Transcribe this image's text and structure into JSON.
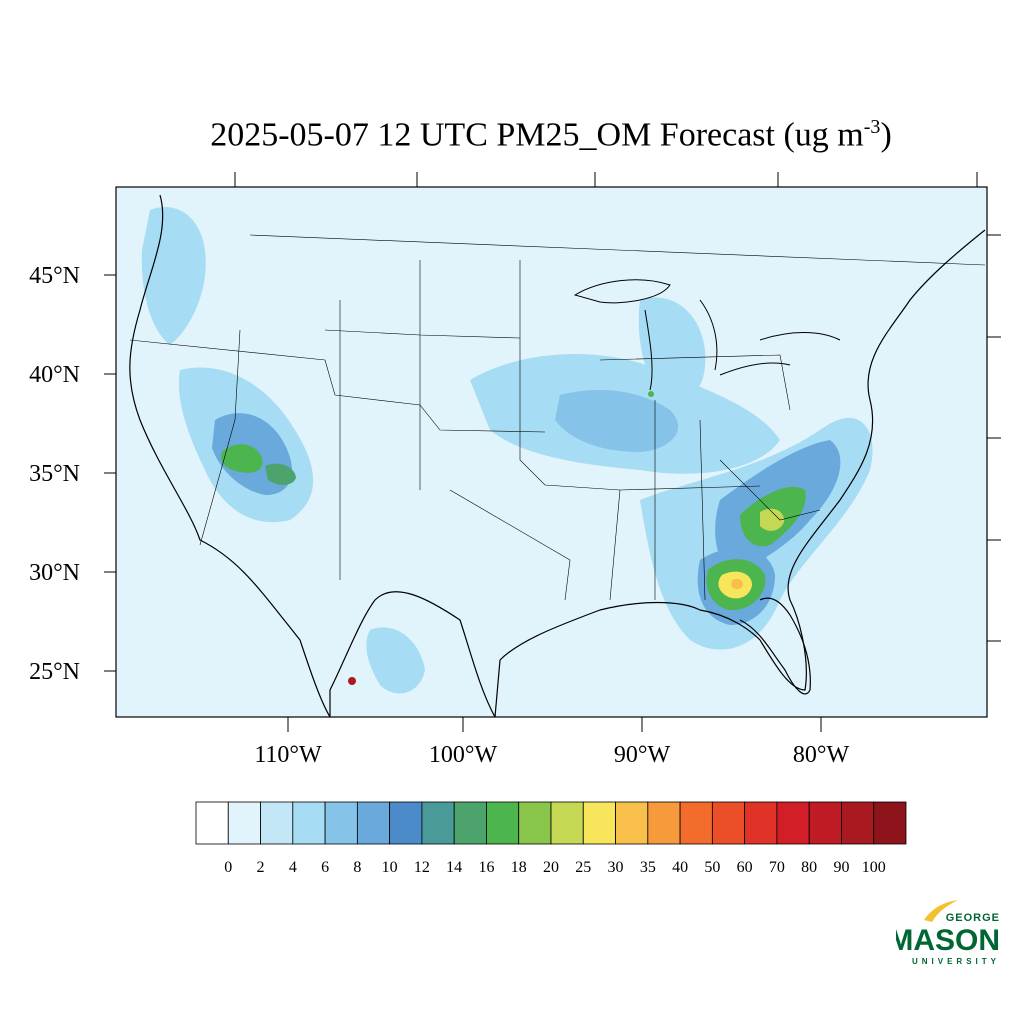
{
  "title": {
    "main": "2025-05-07 12 UTC PM25_OM Forecast (ug m",
    "exponent": "-3",
    "close": ")"
  },
  "axes": {
    "lat_ticks": [
      "45°N",
      "40°N",
      "35°N",
      "30°N",
      "25°N"
    ],
    "lon_ticks": [
      "110°W",
      "100°W",
      "90°W",
      "80°W"
    ]
  },
  "colorbar": {
    "labels": [
      "0",
      "2",
      "4",
      "6",
      "8",
      "10",
      "12",
      "14",
      "16",
      "18",
      "20",
      "25",
      "30",
      "35",
      "40",
      "50",
      "60",
      "70",
      "80",
      "90",
      "100"
    ],
    "colors": [
      "#ffffff",
      "#e2f4fb",
      "#c4e7f7",
      "#a6dcf4",
      "#86c3e8",
      "#69a9dc",
      "#4b8bca",
      "#4a9a9a",
      "#4ca46c",
      "#4cb54d",
      "#89c54a",
      "#c4d854",
      "#f7e65c",
      "#f8c04a",
      "#f69a3b",
      "#f26c2c",
      "#ea4f27",
      "#e03226",
      "#d21f27",
      "#bf1b24",
      "#a81a1f",
      "#8d141a"
    ]
  },
  "logo": {
    "top": "GEORGE",
    "main": "MASON",
    "bottom": "UNIVERSITY",
    "color": "#006633",
    "accent": "#f2c12e"
  },
  "map": {
    "background_color": "#e2f4fb",
    "outline_color": "#000000"
  }
}
